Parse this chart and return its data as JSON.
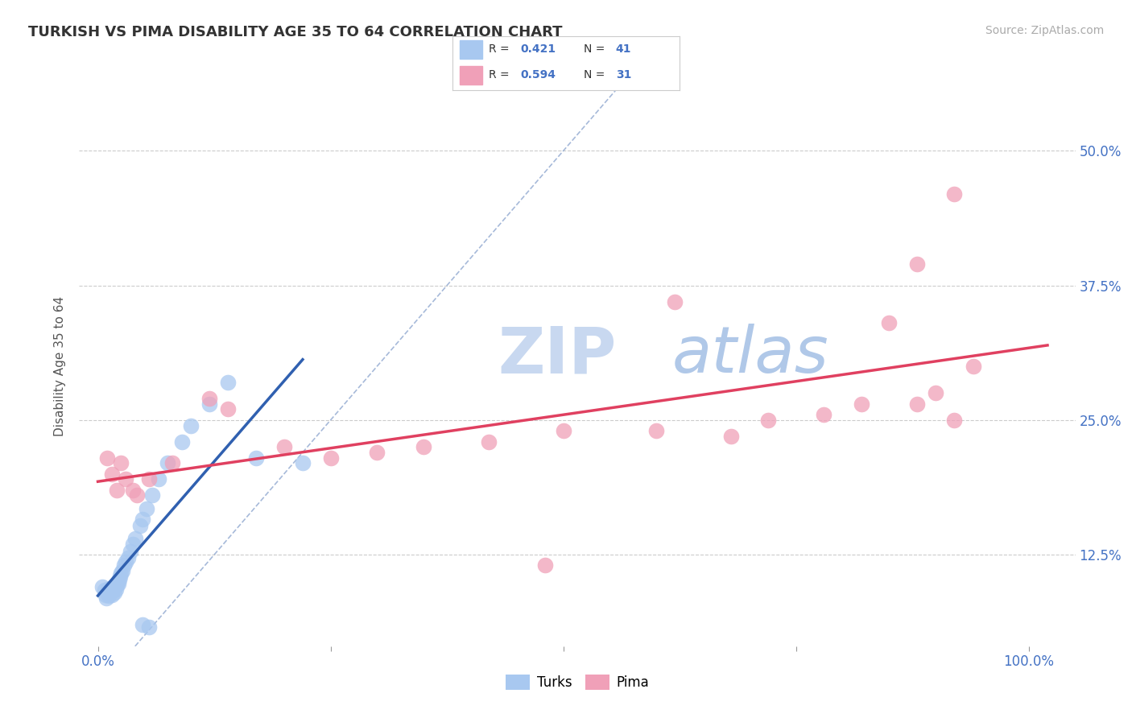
{
  "title": "TURKISH VS PIMA DISABILITY AGE 35 TO 64 CORRELATION CHART",
  "ylabel": "Disability Age 35 to 64",
  "source_text": "Source: ZipAtlas.com",
  "x_ticks": [
    0.0,
    0.25,
    0.5,
    0.75,
    1.0
  ],
  "y_tick_labels": [
    "12.5%",
    "25.0%",
    "37.5%",
    "50.0%"
  ],
  "y_ticks": [
    0.125,
    0.25,
    0.375,
    0.5
  ],
  "xlim": [
    -0.02,
    1.05
  ],
  "ylim": [
    0.04,
    0.56
  ],
  "r_turks": 0.421,
  "n_turks": 41,
  "r_pima": 0.594,
  "n_pima": 31,
  "turks_color": "#a8c8f0",
  "turks_line_color": "#3060b0",
  "pima_color": "#f0a0b8",
  "pima_line_color": "#e04060",
  "diagonal_color": "#90a8d0",
  "watermark_zip_color": "#c8d8f0",
  "watermark_atlas_color": "#b0c8e8",
  "background_color": "#ffffff",
  "turks_x": [
    0.005,
    0.007,
    0.008,
    0.009,
    0.01,
    0.011,
    0.012,
    0.013,
    0.014,
    0.015,
    0.016,
    0.017,
    0.018,
    0.019,
    0.02,
    0.021,
    0.022,
    0.023,
    0.024,
    0.025,
    0.026,
    0.028,
    0.03,
    0.032,
    0.035,
    0.038,
    0.04,
    0.045,
    0.048,
    0.052,
    0.058,
    0.065,
    0.075,
    0.09,
    0.1,
    0.12,
    0.14,
    0.17,
    0.22,
    0.048,
    0.055
  ],
  "turks_y": [
    0.095,
    0.092,
    0.088,
    0.085,
    0.09,
    0.093,
    0.087,
    0.091,
    0.094,
    0.088,
    0.092,
    0.095,
    0.09,
    0.093,
    0.097,
    0.1,
    0.098,
    0.102,
    0.105,
    0.108,
    0.11,
    0.115,
    0.118,
    0.122,
    0.128,
    0.135,
    0.14,
    0.152,
    0.158,
    0.168,
    0.18,
    0.195,
    0.21,
    0.23,
    0.245,
    0.265,
    0.285,
    0.215,
    0.21,
    0.06,
    0.058
  ],
  "pima_x": [
    0.01,
    0.015,
    0.02,
    0.025,
    0.03,
    0.038,
    0.042,
    0.055,
    0.08,
    0.12,
    0.14,
    0.48,
    0.6,
    0.68,
    0.72,
    0.78,
    0.82,
    0.85,
    0.88,
    0.9,
    0.92,
    0.94,
    0.88,
    0.92,
    0.2,
    0.25,
    0.3,
    0.35,
    0.42,
    0.5,
    0.62
  ],
  "pima_y": [
    0.215,
    0.2,
    0.185,
    0.21,
    0.195,
    0.185,
    0.18,
    0.195,
    0.21,
    0.27,
    0.26,
    0.115,
    0.24,
    0.235,
    0.25,
    0.255,
    0.265,
    0.34,
    0.265,
    0.275,
    0.25,
    0.3,
    0.395,
    0.46,
    0.225,
    0.215,
    0.22,
    0.225,
    0.23,
    0.24,
    0.36
  ]
}
